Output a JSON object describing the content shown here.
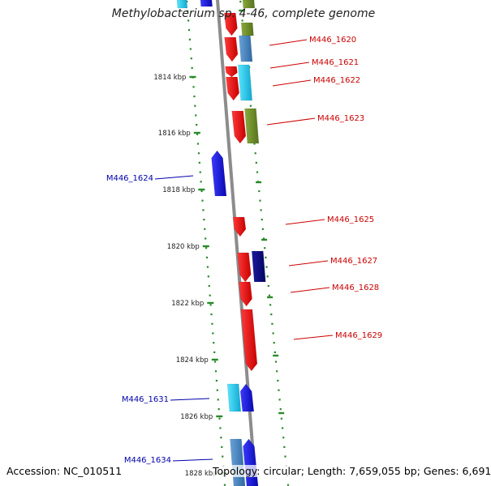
{
  "title": "Methylobacterium sp. 4-46, complete genome",
  "footer": {
    "accession": "Accession: NC_010511",
    "summary": "Topology: circular; Length: 7,659,055 bp; Genes: 6,691"
  },
  "colors": {
    "backbone": "#8c8c8c",
    "tick": "#2a8a2a",
    "red": "#ee0000",
    "blue": "#1a1aee",
    "navy": "#0a0a80",
    "cyan": "#22ccee",
    "steel": "#4b87c0",
    "olive": "#6f8f2a",
    "label_forward": "#cc0000",
    "label_reverse": "#0000aa"
  },
  "scale": {
    "labels": [
      "1814 kbp",
      "1816 kbp",
      "1818 kbp",
      "1820 kbp",
      "1822 kbp",
      "1824 kbp",
      "1826 kbp",
      "1828 kbp"
    ]
  },
  "genes": [
    {
      "label": "M446_1620",
      "strand": "forward"
    },
    {
      "label": "M446_1621",
      "strand": "forward"
    },
    {
      "label": "M446_1622",
      "strand": "forward"
    },
    {
      "label": "M446_1623",
      "strand": "forward"
    },
    {
      "label": "M446_1624",
      "strand": "reverse"
    },
    {
      "label": "M446_1625",
      "strand": "forward"
    },
    {
      "label": "M446_1627",
      "strand": "forward"
    },
    {
      "label": "M446_1628",
      "strand": "forward"
    },
    {
      "label": "M446_1629",
      "strand": "forward"
    },
    {
      "label": "M446_1631",
      "strand": "reverse"
    },
    {
      "label": "M446_1634",
      "strand": "reverse"
    }
  ]
}
